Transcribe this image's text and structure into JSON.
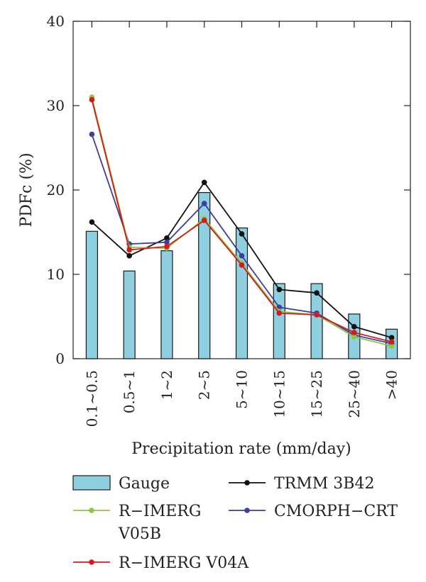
{
  "chart_data": {
    "type": "bar",
    "ylabel": "PDFc (%)",
    "xlabel": "Precipitation rate (mm/day)",
    "ylim": [
      0,
      40
    ],
    "yticks": [
      0,
      10,
      20,
      30,
      40
    ],
    "categories": [
      "0.1~0.5",
      "0.5~1",
      "1~2",
      "2~5",
      "5~10",
      "10~15",
      "15~25",
      "25~40",
      ">40"
    ],
    "series": [
      {
        "name": "Gauge",
        "kind": "bar",
        "color": "#8ecfe0",
        "values": [
          15.1,
          10.4,
          12.8,
          19.7,
          15.5,
          8.9,
          8.9,
          5.3,
          3.5
        ]
      },
      {
        "name": "TRMM 3B42",
        "kind": "line",
        "color": "#111111",
        "values": [
          16.2,
          12.2,
          14.3,
          20.9,
          14.8,
          8.2,
          7.8,
          3.8,
          2.5
        ]
      },
      {
        "name": "R−IMERG V05B",
        "kind": "line",
        "color": "#8dc63f",
        "values": [
          31.0,
          13.2,
          13.1,
          16.6,
          11.3,
          5.6,
          5.2,
          2.6,
          1.5
        ]
      },
      {
        "name": "CMORPH−CRT",
        "kind": "line",
        "color": "#3a3fa0",
        "values": [
          26.6,
          13.6,
          13.8,
          18.4,
          12.2,
          6.1,
          5.4,
          2.8,
          1.8
        ]
      },
      {
        "name": "R−IMERG V04A",
        "kind": "line",
        "color": "#d7191c",
        "values": [
          30.7,
          12.9,
          13.3,
          16.4,
          11.1,
          5.4,
          5.2,
          3.1,
          2.0
        ]
      }
    ],
    "legend": [
      {
        "label": "Gauge",
        "kind": "bar",
        "color": "#8ecfe0"
      },
      {
        "label": "TRMM 3B42",
        "kind": "line",
        "color": "#111111"
      },
      {
        "label": "R−IMERG",
        "label2": "V05B",
        "kind": "line",
        "color": "#8dc63f"
      },
      {
        "label": "CMORPH−CRT",
        "kind": "line",
        "color": "#3a3fa0"
      },
      {
        "label": "R−IMERG V04A",
        "kind": "line",
        "color": "#d7191c"
      }
    ],
    "grid": false,
    "legend_position": "bottom"
  }
}
